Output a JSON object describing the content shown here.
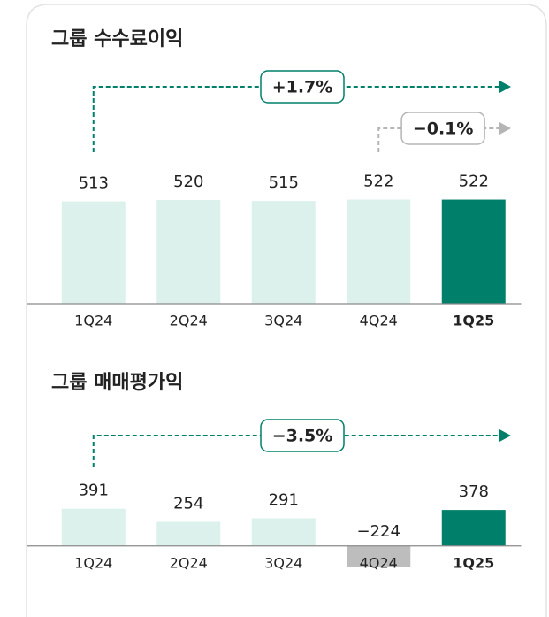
{
  "chart_data": [
    {
      "type": "bar",
      "title": "그룹 수수료이익",
      "categories": [
        "1Q24",
        "2Q24",
        "3Q24",
        "4Q24",
        "1Q25"
      ],
      "values": [
        513,
        520,
        515,
        522,
        522
      ],
      "colors": [
        "#dcf1ec",
        "#dcf1ec",
        "#dcf1ec",
        "#dcf1ec",
        "#00806a"
      ],
      "highlight": 4,
      "ylim": [
        0,
        600
      ],
      "annotations": [
        {
          "text": "+1.7%",
          "from": 0,
          "to": 4,
          "color": "#00806a"
        },
        {
          "text": "−0.1%",
          "from": 3,
          "to": 4,
          "color": "#b5b5b5"
        }
      ]
    },
    {
      "type": "bar",
      "title": "그룹 매매평가익",
      "categories": [
        "1Q24",
        "2Q24",
        "3Q24",
        "4Q24",
        "1Q25"
      ],
      "values": [
        391,
        254,
        291,
        -224,
        378
      ],
      "value_labels": [
        "391",
        "254",
        "291",
        "−224",
        "378"
      ],
      "colors": [
        "#dcf1ec",
        "#dcf1ec",
        "#dcf1ec",
        "#bdbdbd",
        "#00806a"
      ],
      "highlight": 4,
      "ylim": [
        -300,
        500
      ],
      "annotations": [
        {
          "text": "−3.5%",
          "from": 0,
          "to": 4,
          "color": "#00806a"
        }
      ]
    }
  ]
}
